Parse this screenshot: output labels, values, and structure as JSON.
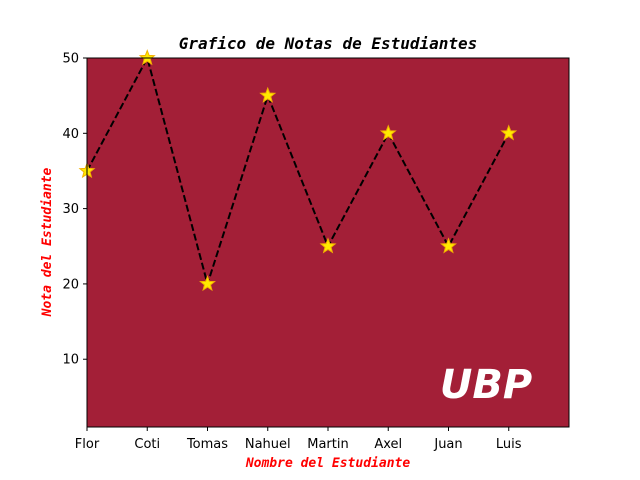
{
  "chart_data": {
    "type": "line",
    "title": "Grafico de Notas de Estudiantes",
    "xlabel": "Nombre del Estudiante",
    "ylabel": "Nota del Estudiante",
    "categories": [
      "Flor",
      "Coti",
      "Tomas",
      "Nahuel",
      "Martin",
      "Axel",
      "Juan",
      "Luis"
    ],
    "values": [
      35,
      50,
      20,
      45,
      25,
      40,
      25,
      40
    ],
    "yticks": [
      "10",
      "20",
      "30",
      "40",
      "50"
    ],
    "ylim": [
      1,
      50
    ],
    "grid": false,
    "line_style": "dashed",
    "marker": "star",
    "annotation": "UBP"
  },
  "colors": {
    "plot_background": "#a31f37",
    "line": "#000000",
    "marker_fill": "#ffea00",
    "marker_edge": "#f2b100",
    "axis_label": "#ff0000",
    "annotation_text": "#ffffff"
  }
}
